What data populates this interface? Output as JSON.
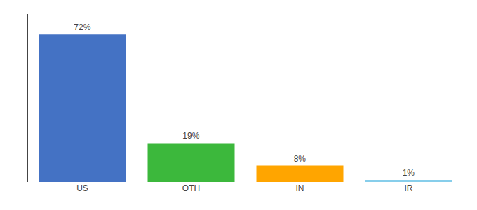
{
  "chart_data": {
    "type": "bar",
    "categories": [
      "US",
      "OTH",
      "IN",
      "IR"
    ],
    "values": [
      72,
      19,
      8,
      1
    ],
    "value_labels": [
      "72%",
      "19%",
      "8%",
      "1%"
    ],
    "data_labels": true,
    "colors": [
      "#4472C4",
      "#3CB83C",
      "#FFA500",
      "#87CEEB"
    ],
    "ylim": [
      0,
      82
    ],
    "yticks": [],
    "grid": false,
    "tick_labels": "x"
  }
}
